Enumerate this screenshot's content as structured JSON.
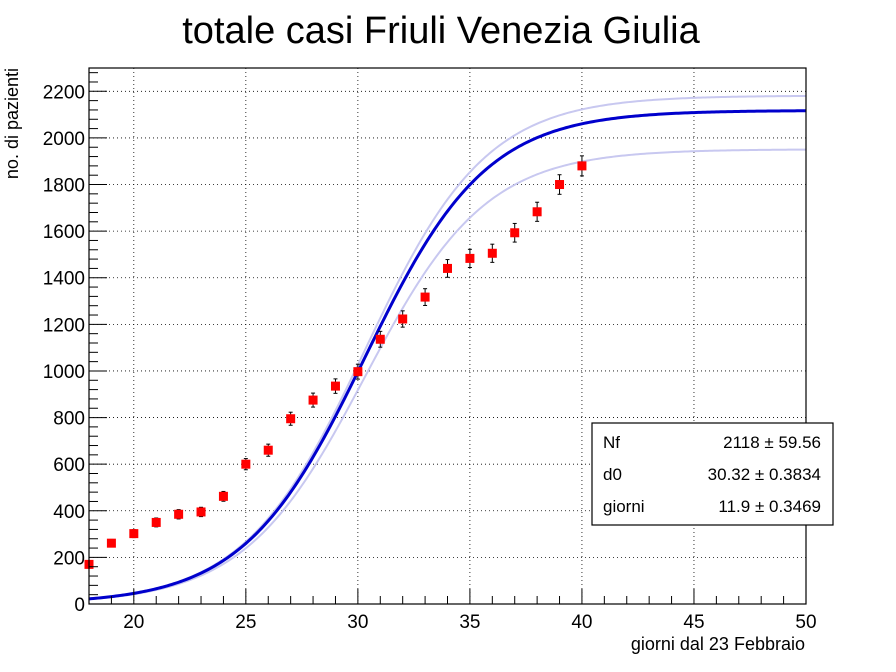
{
  "chart_data": {
    "type": "scatter",
    "title": "totale casi Friuli Venezia Giulia",
    "xlabel": "giorni dal 23 Febbraio",
    "ylabel": "no. di pazienti",
    "xlim": [
      18,
      50
    ],
    "ylim": [
      0,
      2300
    ],
    "x_ticks": [
      20,
      25,
      30,
      35,
      40,
      45,
      50
    ],
    "y_ticks": [
      0,
      200,
      400,
      600,
      800,
      1000,
      1200,
      1400,
      1600,
      1800,
      2000,
      2200
    ],
    "grid": true,
    "colors": {
      "points": "#ff0000",
      "fit": "#0000cc",
      "band": "#c8c8f0"
    },
    "series": [
      {
        "x": [
          18,
          19,
          20,
          21,
          22,
          23,
          24,
          25,
          26,
          27,
          28,
          29,
          30,
          31,
          32,
          33,
          34,
          35,
          36,
          37,
          38,
          39,
          40
        ],
        "y": [
          170,
          261,
          302,
          350,
          385,
          395,
          462,
          600,
          660,
          795,
          875,
          935,
          997,
          1136,
          1223,
          1317,
          1440,
          1483,
          1505,
          1593,
          1683,
          1800,
          1880
        ],
        "err": [
          13,
          16,
          17,
          19,
          20,
          20,
          21,
          24,
          26,
          28,
          30,
          31,
          32,
          34,
          35,
          36,
          38,
          39,
          39,
          40,
          41,
          42,
          43
        ]
      }
    ],
    "fit": {
      "model": "logistic",
      "params": [
        {
          "name": "Nf",
          "value": "2118",
          "error": "59.56"
        },
        {
          "name": "d0",
          "value": "30.32",
          "error": "0.3834"
        },
        {
          "name": "giorni",
          "value": "11.9",
          "error": "0.3469"
        }
      ],
      "band_upper_end": 2180,
      "band_lower_end": 1950
    }
  }
}
